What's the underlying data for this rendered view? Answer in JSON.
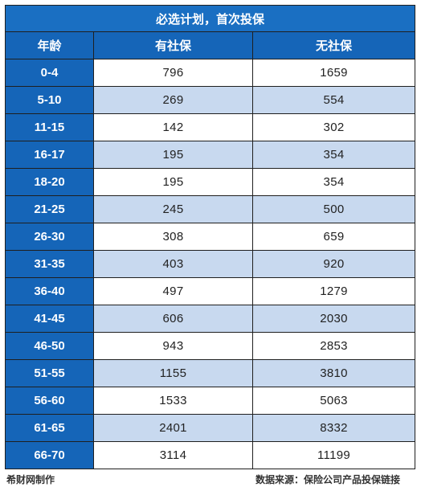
{
  "title": "必选计划，首次投保",
  "columns": [
    "年龄",
    "有社保",
    "无社保"
  ],
  "rows": [
    {
      "age": "0-4",
      "with": "796",
      "without": "1659"
    },
    {
      "age": "5-10",
      "with": "269",
      "without": "554"
    },
    {
      "age": "11-15",
      "with": "142",
      "without": "302"
    },
    {
      "age": "16-17",
      "with": "195",
      "without": "354"
    },
    {
      "age": "18-20",
      "with": "195",
      "without": "354"
    },
    {
      "age": "21-25",
      "with": "245",
      "without": "500"
    },
    {
      "age": "26-30",
      "with": "308",
      "without": "659"
    },
    {
      "age": "31-35",
      "with": "403",
      "without": "920"
    },
    {
      "age": "36-40",
      "with": "497",
      "without": "1279"
    },
    {
      "age": "41-45",
      "with": "606",
      "without": "2030"
    },
    {
      "age": "46-50",
      "with": "943",
      "without": "2853"
    },
    {
      "age": "51-55",
      "with": "1155",
      "without": "3810"
    },
    {
      "age": "56-60",
      "with": "1533",
      "without": "5063"
    },
    {
      "age": "61-65",
      "with": "2401",
      "without": "8332"
    },
    {
      "age": "66-70",
      "with": "3114",
      "without": "11199"
    }
  ],
  "footer": {
    "credit": "希财网制作",
    "source": "数据来源：保险公司产品投保链接"
  },
  "colors": {
    "header_blue": "#1565b8",
    "title_blue": "#1a6fc2",
    "stripe": "#c8d9ef"
  }
}
